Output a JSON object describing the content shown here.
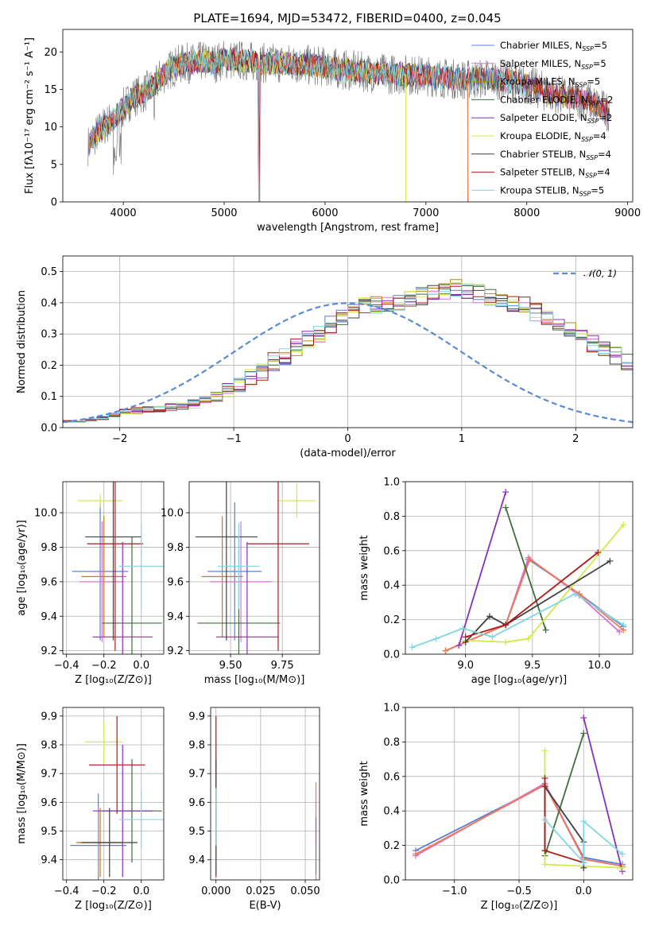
{
  "figure": {
    "title": "PLATE=1694, MJD=53472, FIBERID=0400, z=0.045"
  },
  "colors": {
    "chabrier_miles": "#5b7fd6",
    "salpeter_miles": "#d872d6",
    "kroupa_miles": "#b8860b",
    "chabrier_elodie": "#3e6e3e",
    "salpeter_elodie": "#8e2fb8",
    "kroupa_elodie": "#d4e84a",
    "chabrier_stelib": "#404040",
    "salpeter_stelib": "#b01818",
    "kroupa_stelib": "#7fd8e0",
    "data": "#808080",
    "orange": "#f07850",
    "normal": "#5b8ad6"
  },
  "chart_data": [
    {
      "id": "spectrum",
      "type": "line",
      "xlabel": "wavelength [Angstrom, rest frame]",
      "ylabel": "Flux [fλ10⁻¹⁷ erg cm⁻² s⁻¹ A⁻¹]",
      "xlim": [
        3400,
        9050
      ],
      "ylim": [
        0,
        23
      ],
      "xticks": [
        4000,
        5000,
        6000,
        7000,
        8000,
        9000
      ],
      "yticks": [
        0,
        5,
        10,
        15,
        20
      ],
      "continuum": {
        "x": [
          3650,
          3700,
          3800,
          3900,
          4000,
          4100,
          4200,
          4300,
          4400,
          4500,
          4600,
          4700,
          4800,
          4900,
          5000,
          5200,
          5400,
          5600,
          5800,
          6000,
          6200,
          6400,
          6600,
          6800,
          7000,
          7200,
          7400,
          7600,
          7800,
          8000,
          8200,
          8400,
          8600,
          8800
        ],
        "y": [
          7.5,
          8.5,
          10,
          11,
          12.5,
          14,
          14.5,
          15.5,
          17,
          18,
          18.5,
          18.5,
          18.8,
          18.5,
          19,
          18.8,
          18.5,
          18.5,
          18.3,
          18,
          17.6,
          17.3,
          17.1,
          17,
          16.8,
          16.5,
          16.3,
          16.5,
          16.2,
          15.6,
          14.6,
          14.0,
          13.5,
          12.0
        ]
      },
      "legend": {
        "position": "upper-right",
        "entries": [
          {
            "label": "Chabrier MILES, N",
            "sub": "SSP",
            "eq": "=5",
            "color_key": "chabrier_miles"
          },
          {
            "label": "Salpeter MILES, N",
            "sub": "SSP",
            "eq": "=5",
            "color_key": "salpeter_miles"
          },
          {
            "label": "Kroupa MILES, N",
            "sub": "SSP",
            "eq": "=5",
            "color_key": "kroupa_miles"
          },
          {
            "label": "Chabrier ELODIE, N",
            "sub": "SSP",
            "eq": "=2",
            "color_key": "chabrier_elodie"
          },
          {
            "label": "Salpeter ELODIE, N",
            "sub": "SSP",
            "eq": "=2",
            "color_key": "salpeter_elodie"
          },
          {
            "label": "Kroupa ELODIE, N",
            "sub": "SSP",
            "eq": "=4",
            "color_key": "kroupa_elodie"
          },
          {
            "label": "Chabrier STELIB, N",
            "sub": "SSP",
            "eq": "=4",
            "color_key": "chabrier_stelib"
          },
          {
            "label": "Salpeter STELIB, N",
            "sub": "SSP",
            "eq": "=4",
            "color_key": "salpeter_stelib"
          },
          {
            "label": "Kroupa STELIB, N",
            "sub": "SSP",
            "eq": "=5",
            "color_key": "kroupa_stelib"
          }
        ]
      }
    },
    {
      "id": "residuals",
      "type": "histogram",
      "xlabel": "(data-model)/error",
      "ylabel": "Normed distribution",
      "xlim": [
        -2.5,
        2.5
      ],
      "ylim": [
        0,
        0.55
      ],
      "xticks": [
        -2,
        -1,
        0,
        1,
        2
      ],
      "yticks": [
        0.0,
        0.1,
        0.2,
        0.3,
        0.4,
        0.5
      ],
      "grid": true,
      "bin_width": 0.1,
      "bin_start": -2.5,
      "base_heights": [
        0.02,
        0.02,
        0.025,
        0.03,
        0.04,
        0.05,
        0.055,
        0.06,
        0.06,
        0.065,
        0.07,
        0.075,
        0.085,
        0.1,
        0.12,
        0.14,
        0.16,
        0.18,
        0.21,
        0.23,
        0.26,
        0.28,
        0.3,
        0.33,
        0.36,
        0.38,
        0.39,
        0.395,
        0.4,
        0.405,
        0.41,
        0.42,
        0.43,
        0.44,
        0.45,
        0.44,
        0.43,
        0.42,
        0.41,
        0.4,
        0.39,
        0.37,
        0.35,
        0.33,
        0.31,
        0.29,
        0.27,
        0.25,
        0.23,
        0.21,
        0.19,
        0.17,
        0.15,
        0.13,
        0.11,
        0.1,
        0.09,
        0.08,
        0.07,
        0.065,
        0.06,
        0.055,
        0.05,
        0.045,
        0.04,
        0.035,
        0.03,
        0.028,
        0.025,
        0.022,
        0.02,
        0.018,
        0.016,
        0.015,
        0.014,
        0.013,
        0.012,
        0.012,
        0.011,
        0.01,
        0.01
      ],
      "legend": {
        "label": "𝒩(0, 1)",
        "position": "upper-right"
      }
    },
    {
      "id": "age_vs_Z",
      "type": "errorbar",
      "xlabel": "Z [log₁₀(Z/Z⊙)]",
      "ylabel": "age  [log₁₀(age/yr)]",
      "xlim": [
        -0.42,
        0.12
      ],
      "ylim": [
        9.18,
        10.18
      ],
      "xticks": [
        -0.4,
        -0.2,
        0.0
      ],
      "yticks": [
        9.2,
        9.4,
        9.6,
        9.8,
        10.0
      ],
      "grid": true,
      "points": [
        {
          "x": -0.22,
          "y": 9.66,
          "xerr": 0.15,
          "yerr": 0.4,
          "color_key": "chabrier_miles"
        },
        {
          "x": -0.21,
          "y": 9.6,
          "xerr": 0.12,
          "yerr": 0.35,
          "color_key": "salpeter_miles"
        },
        {
          "x": -0.2,
          "y": 9.63,
          "xerr": 0.12,
          "yerr": 0.35,
          "color_key": "kroupa_miles"
        },
        {
          "x": -0.05,
          "y": 9.36,
          "xerr": 0.16,
          "yerr": 0.5,
          "color_key": "chabrier_elodie"
        },
        {
          "x": -0.1,
          "y": 9.28,
          "xerr": 0.16,
          "yerr": 0.55,
          "color_key": "salpeter_elodie"
        },
        {
          "x": -0.22,
          "y": 10.07,
          "xerr": 0.12,
          "yerr": 0.04,
          "color_key": "kroupa_elodie"
        },
        {
          "x": -0.15,
          "y": 9.86,
          "xerr": 0.15,
          "yerr": 0.6,
          "color_key": "chabrier_stelib"
        },
        {
          "x": -0.14,
          "y": 9.82,
          "xerr": 0.15,
          "yerr": 0.62,
          "color_key": "salpeter_stelib"
        },
        {
          "x": 0.0,
          "y": 9.69,
          "xerr": 0.12,
          "yerr": 0.25,
          "color_key": "kroupa_stelib"
        }
      ]
    },
    {
      "id": "age_vs_mass",
      "type": "errorbar",
      "xlabel": "mass [log₁₀(M/M⊙)]",
      "ylabel": "",
      "xlim": [
        9.3,
        9.93
      ],
      "ylim": [
        9.18,
        10.18
      ],
      "xticks": [
        9.5,
        9.75
      ],
      "yticks": [
        9.2,
        9.4,
        9.6,
        9.8,
        10.0
      ],
      "grid": true,
      "points": [
        {
          "x": 9.52,
          "y": 9.66,
          "xerr": 0.13,
          "yerr": 0.4,
          "color_key": "chabrier_miles"
        },
        {
          "x": 9.55,
          "y": 9.6,
          "xerr": 0.15,
          "yerr": 0.35,
          "color_key": "salpeter_miles"
        },
        {
          "x": 9.46,
          "y": 9.63,
          "xerr": 0.1,
          "yerr": 0.35,
          "color_key": "kroupa_miles"
        },
        {
          "x": 9.54,
          "y": 9.36,
          "xerr": 0.2,
          "yerr": 0.5,
          "color_key": "chabrier_elodie"
        },
        {
          "x": 9.58,
          "y": 9.28,
          "xerr": 0.15,
          "yerr": 0.55,
          "color_key": "salpeter_elodie"
        },
        {
          "x": 9.82,
          "y": 10.07,
          "xerr": 0.09,
          "yerr": 0.1,
          "color_key": "kroupa_elodie"
        },
        {
          "x": 9.48,
          "y": 9.86,
          "xerr": 0.15,
          "yerr": 0.6,
          "color_key": "chabrier_stelib"
        },
        {
          "x": 9.73,
          "y": 9.82,
          "xerr": 0.15,
          "yerr": 0.62,
          "color_key": "salpeter_stelib"
        },
        {
          "x": 9.54,
          "y": 9.69,
          "xerr": 0.1,
          "yerr": 0.25,
          "color_key": "kroupa_stelib"
        }
      ]
    },
    {
      "id": "massweight_vs_age",
      "type": "line",
      "xlabel": "age  [log₁₀(age/yr)]",
      "ylabel": "mass weight",
      "xlim": [
        8.55,
        10.25
      ],
      "ylim": [
        0,
        1
      ],
      "xticks": [
        9.0,
        9.5,
        10.0
      ],
      "yticks": [
        0.0,
        0.2,
        0.4,
        0.6,
        0.8,
        1.0
      ],
      "grid": true,
      "series": [
        {
          "color_key": "chabrier_miles",
          "x": [
            8.85,
            9.3,
            9.47,
            9.85,
            10.18
          ],
          "y": [
            0.02,
            0.17,
            0.55,
            0.35,
            0.16
          ]
        },
        {
          "color_key": "salpeter_miles",
          "x": [
            8.85,
            9.3,
            9.47,
            9.85,
            10.15
          ],
          "y": [
            0.02,
            0.17,
            0.56,
            0.34,
            0.13
          ]
        },
        {
          "color_key": "orange",
          "x": [
            8.85,
            9.3,
            9.48,
            9.85,
            10.18
          ],
          "y": [
            0.02,
            0.17,
            0.55,
            0.35,
            0.14
          ]
        },
        {
          "color_key": "chabrier_elodie",
          "x": [
            9.3,
            9.6
          ],
          "y": [
            0.85,
            0.14
          ]
        },
        {
          "color_key": "salpeter_elodie",
          "x": [
            8.95,
            9.3
          ],
          "y": [
            0.05,
            0.94
          ]
        },
        {
          "color_key": "kroupa_elodie",
          "x": [
            9.0,
            9.3,
            9.47,
            10.18
          ],
          "y": [
            0.08,
            0.07,
            0.09,
            0.75
          ]
        },
        {
          "color_key": "chabrier_stelib",
          "x": [
            9.0,
            9.18,
            9.3,
            10.08
          ],
          "y": [
            0.07,
            0.22,
            0.17,
            0.54
          ]
        },
        {
          "color_key": "salpeter_stelib",
          "x": [
            9.0,
            9.3,
            9.99
          ],
          "y": [
            0.1,
            0.17,
            0.59
          ]
        },
        {
          "color_key": "kroupa_stelib",
          "x": [
            8.6,
            8.78,
            8.98,
            9.2,
            9.82,
            10.18
          ],
          "y": [
            0.04,
            0.09,
            0.15,
            0.1,
            0.35,
            0.17
          ]
        }
      ]
    },
    {
      "id": "mass_vs_Z",
      "type": "errorbar",
      "xlabel": "Z [log₁₀(Z/Z⊙)]",
      "ylabel": "mass [log₁₀(M/M⊙)]",
      "xlim": [
        -0.42,
        0.12
      ],
      "ylim": [
        9.33,
        9.93
      ],
      "xticks": [
        -0.4,
        -0.2,
        0.0
      ],
      "yticks": [
        9.4,
        9.5,
        9.6,
        9.7,
        9.8,
        9.9
      ],
      "grid": true,
      "points": [
        {
          "x": -0.23,
          "y": 9.45,
          "xerr": 0.15,
          "yerr": 0.18,
          "color_key": "chabrier_miles"
        },
        {
          "x": -0.23,
          "y": 9.46,
          "xerr": 0.12,
          "yerr": 0.12,
          "color_key": "salpeter_miles"
        },
        {
          "x": -0.22,
          "y": 9.46,
          "xerr": 0.12,
          "yerr": 0.12,
          "color_key": "kroupa_miles"
        },
        {
          "x": -0.05,
          "y": 9.57,
          "xerr": 0.16,
          "yerr": 0.18,
          "color_key": "chabrier_elodie"
        },
        {
          "x": -0.1,
          "y": 9.57,
          "xerr": 0.16,
          "yerr": 0.23,
          "color_key": "salpeter_elodie"
        },
        {
          "x": -0.2,
          "y": 9.81,
          "xerr": 0.1,
          "yerr": 0.07,
          "color_key": "kroupa_elodie"
        },
        {
          "x": -0.17,
          "y": 9.46,
          "xerr": 0.15,
          "yerr": 0.12,
          "color_key": "chabrier_stelib"
        },
        {
          "x": -0.13,
          "y": 9.73,
          "xerr": 0.15,
          "yerr": 0.17,
          "color_key": "salpeter_stelib"
        },
        {
          "x": 0.0,
          "y": 9.54,
          "xerr": 0.12,
          "yerr": 0.1,
          "color_key": "kroupa_stelib"
        }
      ]
    },
    {
      "id": "mass_vs_EBV",
      "type": "errorbar",
      "xlabel": "E(B-V)",
      "ylabel": "",
      "xlim": [
        -0.003,
        0.058
      ],
      "ylim": [
        9.33,
        9.93
      ],
      "xticks": [
        0.0,
        0.025,
        0.05
      ],
      "yticks": [
        9.4,
        9.5,
        9.6,
        9.7,
        9.8,
        9.9
      ],
      "grid": true,
      "points": [
        {
          "x": 0.0,
          "y": 9.62,
          "xerr": 0,
          "yerr": 0.28,
          "color_key": "salpeter_stelib"
        },
        {
          "x": 0.0,
          "y": 9.55,
          "xerr": 0,
          "yerr": 0.2,
          "color_key": "chabrier_stelib"
        },
        {
          "x": 0.0,
          "y": 9.5,
          "xerr": 0,
          "yerr": 0.15,
          "color_key": "chabrier_elodie"
        },
        {
          "x": 0.0,
          "y": 9.55,
          "xerr": 0,
          "yerr": 0.1,
          "color_key": "kroupa_stelib"
        },
        {
          "x": 0.056,
          "y": 9.5,
          "xerr": 0,
          "yerr": 0.17,
          "color_key": "orange"
        },
        {
          "x": 0.056,
          "y": 9.55,
          "xerr": 0,
          "yerr": 0.1,
          "color_key": "salpeter_miles"
        },
        {
          "x": 0.056,
          "y": 9.45,
          "xerr": 0,
          "yerr": 0.1,
          "color_key": "chabrier_miles"
        }
      ]
    },
    {
      "id": "massweight_vs_Z",
      "type": "line",
      "xlabel": "Z [log₁₀(Z/Z⊙)]",
      "ylabel": "mass weight",
      "xlim": [
        -1.38,
        0.38
      ],
      "ylim": [
        0,
        1
      ],
      "xticks": [
        -1.0,
        -0.5,
        0.0
      ],
      "yticks": [
        0.0,
        0.2,
        0.4,
        0.6,
        0.8,
        1.0
      ],
      "grid": true,
      "series": [
        {
          "color_key": "chabrier_miles",
          "x": [
            -1.3,
            -0.3,
            0.0,
            0.3
          ],
          "y": [
            0.17,
            0.55,
            0.13,
            0.09
          ]
        },
        {
          "color_key": "salpeter_miles",
          "x": [
            -1.3,
            -0.3,
            0.0,
            0.3
          ],
          "y": [
            0.14,
            0.56,
            0.12,
            0.08
          ]
        },
        {
          "color_key": "orange",
          "x": [
            -1.3,
            -0.3,
            0.0,
            0.3
          ],
          "y": [
            0.15,
            0.55,
            0.12,
            0.08
          ]
        },
        {
          "color_key": "chabrier_elodie",
          "x": [
            -0.3,
            0.0
          ],
          "y": [
            0.14,
            0.85
          ]
        },
        {
          "color_key": "salpeter_elodie",
          "x": [
            0.0,
            0.3
          ],
          "y": [
            0.94,
            0.05
          ]
        },
        {
          "color_key": "kroupa_elodie",
          "x": [
            -0.3,
            -0.3,
            0.0,
            0.3
          ],
          "y": [
            0.75,
            0.09,
            0.08,
            0.07
          ]
        },
        {
          "color_key": "chabrier_stelib",
          "x": [
            -0.3,
            -0.3,
            0.0,
            0.0
          ],
          "y": [
            0.17,
            0.54,
            0.22,
            0.07
          ]
        },
        {
          "color_key": "salpeter_stelib",
          "x": [
            -0.3,
            -0.3,
            0.0
          ],
          "y": [
            0.59,
            0.17,
            0.1
          ]
        },
        {
          "color_key": "kroupa_stelib",
          "x": [
            -0.3,
            0.0,
            0.0,
            0.3
          ],
          "y": [
            0.35,
            0.1,
            0.34,
            0.15
          ]
        }
      ]
    }
  ]
}
